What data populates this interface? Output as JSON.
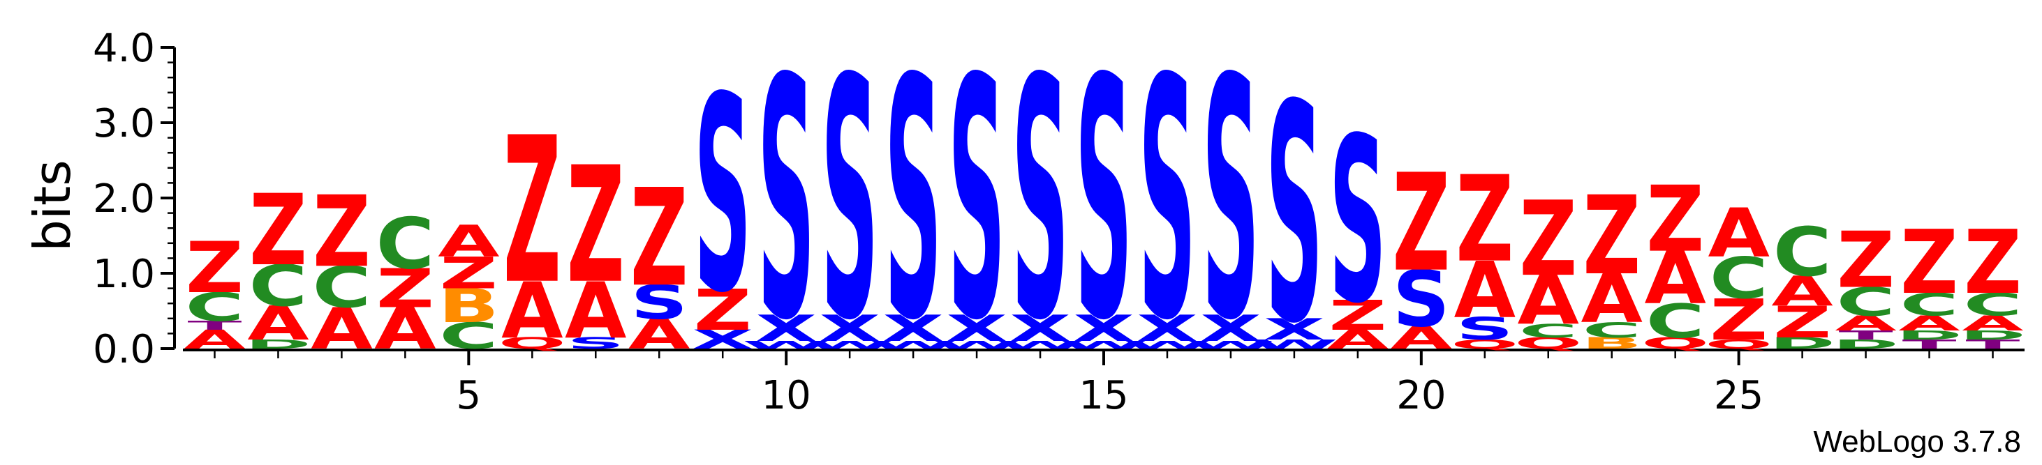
{
  "chart_data": {
    "type": "sequence-logo",
    "title": "",
    "xlabel": "",
    "ylabel": "bits",
    "ylim": [
      0,
      4.0
    ],
    "xlim": [
      1,
      29
    ],
    "y_ticks": [
      0.0,
      1.0,
      2.0,
      3.0,
      4.0
    ],
    "y_tick_labels": [
      "0.0",
      "1.0",
      "2.0",
      "3.0",
      "4.0"
    ],
    "x_ticks": [
      5,
      10,
      15,
      20,
      25
    ],
    "x_tick_labels": [
      "5",
      "10",
      "15",
      "20",
      "25"
    ],
    "grid": false,
    "legend": "none",
    "colors": {
      "Z": "#ff0000",
      "A": "#ff0000",
      "C": "#228b22",
      "S": "#0000ff",
      "X": "#0000ff",
      "W": "#0000ff",
      "B": "#ff8c00",
      "D": "#228b22",
      "Q": "#ff0000",
      "T": "#800080"
    },
    "positions": [
      {
        "pos": 1,
        "stack": [
          [
            "A",
            0.25
          ],
          [
            "T",
            0.12
          ],
          [
            "C",
            0.38
          ],
          [
            "Z",
            0.68
          ]
        ]
      },
      {
        "pos": 2,
        "stack": [
          [
            "D",
            0.12
          ],
          [
            "A",
            0.45
          ],
          [
            "C",
            0.55
          ],
          [
            "Z",
            0.95
          ]
        ]
      },
      {
        "pos": 3,
        "stack": [
          [
            "A",
            0.55
          ],
          [
            "C",
            0.55
          ],
          [
            "Z",
            0.95
          ]
        ]
      },
      {
        "pos": 4,
        "stack": [
          [
            "A",
            0.55
          ],
          [
            "Z",
            0.52
          ],
          [
            "C",
            0.68
          ]
        ]
      },
      {
        "pos": 5,
        "stack": [
          [
            "C",
            0.35
          ],
          [
            "B",
            0.45
          ],
          [
            "Z",
            0.42
          ],
          [
            "A",
            0.42
          ]
        ]
      },
      {
        "pos": 6,
        "stack": [
          [
            "Q",
            0.15
          ],
          [
            "A",
            0.75
          ],
          [
            "Z",
            1.95
          ]
        ]
      },
      {
        "pos": 7,
        "stack": [
          [
            "S",
            0.15
          ],
          [
            "A",
            0.75
          ],
          [
            "Z",
            1.55
          ]
        ]
      },
      {
        "pos": 8,
        "stack": [
          [
            "A",
            0.4
          ],
          [
            "S",
            0.45
          ],
          [
            "Z",
            1.3
          ]
        ]
      },
      {
        "pos": 9,
        "stack": [
          [
            "X",
            0.25
          ],
          [
            "Z",
            0.55
          ],
          [
            "S",
            2.6
          ]
        ]
      },
      {
        "pos": 10,
        "stack": [
          [
            "W",
            0.1
          ],
          [
            "X",
            0.35
          ],
          [
            "S",
            3.2
          ]
        ]
      },
      {
        "pos": 11,
        "stack": [
          [
            "W",
            0.1
          ],
          [
            "X",
            0.35
          ],
          [
            "S",
            3.2
          ]
        ]
      },
      {
        "pos": 12,
        "stack": [
          [
            "W",
            0.1
          ],
          [
            "X",
            0.35
          ],
          [
            "S",
            3.2
          ]
        ]
      },
      {
        "pos": 13,
        "stack": [
          [
            "W",
            0.1
          ],
          [
            "X",
            0.35
          ],
          [
            "S",
            3.2
          ]
        ]
      },
      {
        "pos": 14,
        "stack": [
          [
            "W",
            0.1
          ],
          [
            "X",
            0.35
          ],
          [
            "S",
            3.2
          ]
        ]
      },
      {
        "pos": 15,
        "stack": [
          [
            "W",
            0.1
          ],
          [
            "X",
            0.35
          ],
          [
            "S",
            3.2
          ]
        ]
      },
      {
        "pos": 16,
        "stack": [
          [
            "W",
            0.1
          ],
          [
            "X",
            0.35
          ],
          [
            "S",
            3.2
          ]
        ]
      },
      {
        "pos": 17,
        "stack": [
          [
            "W",
            0.1
          ],
          [
            "X",
            0.35
          ],
          [
            "S",
            3.2
          ]
        ]
      },
      {
        "pos": 18,
        "stack": [
          [
            "W",
            0.12
          ],
          [
            "X",
            0.28
          ],
          [
            "S",
            2.9
          ]
        ]
      },
      {
        "pos": 19,
        "stack": [
          [
            "A",
            0.25
          ],
          [
            "Z",
            0.4
          ],
          [
            "S",
            2.2
          ]
        ]
      },
      {
        "pos": 20,
        "stack": [
          [
            "A",
            0.3
          ],
          [
            "S",
            0.75
          ],
          [
            "Z",
            1.3
          ]
        ]
      },
      {
        "pos": 21,
        "stack": [
          [
            "Q",
            0.12
          ],
          [
            "S",
            0.3
          ],
          [
            "A",
            0.75
          ],
          [
            "Z",
            1.15
          ]
        ]
      },
      {
        "pos": 22,
        "stack": [
          [
            "Q",
            0.15
          ],
          [
            "C",
            0.18
          ],
          [
            "A",
            0.65
          ],
          [
            "Z",
            1.0
          ]
        ]
      },
      {
        "pos": 23,
        "stack": [
          [
            "B",
            0.15
          ],
          [
            "C",
            0.2
          ],
          [
            "A",
            0.65
          ],
          [
            "Z",
            1.05
          ]
        ]
      },
      {
        "pos": 24,
        "stack": [
          [
            "Q",
            0.15
          ],
          [
            "C",
            0.45
          ],
          [
            "A",
            0.7
          ],
          [
            "Z",
            0.88
          ]
        ]
      },
      {
        "pos": 25,
        "stack": [
          [
            "Q",
            0.12
          ],
          [
            "Z",
            0.55
          ],
          [
            "C",
            0.55
          ],
          [
            "A",
            0.65
          ]
        ]
      },
      {
        "pos": 26,
        "stack": [
          [
            "D",
            0.15
          ],
          [
            "Z",
            0.42
          ],
          [
            "A",
            0.4
          ],
          [
            "C",
            0.65
          ]
        ]
      },
      {
        "pos": 27,
        "stack": [
          [
            "D",
            0.12
          ],
          [
            "T",
            0.12
          ],
          [
            "A",
            0.2
          ],
          [
            "C",
            0.38
          ],
          [
            "Z",
            0.75
          ]
        ]
      },
      {
        "pos": 28,
        "stack": [
          [
            "T",
            0.12
          ],
          [
            "D",
            0.12
          ],
          [
            "A",
            0.2
          ],
          [
            "C",
            0.3
          ],
          [
            "Z",
            0.85
          ]
        ]
      },
      {
        "pos": 29,
        "stack": [
          [
            "T",
            0.12
          ],
          [
            "D",
            0.12
          ],
          [
            "A",
            0.2
          ],
          [
            "C",
            0.3
          ],
          [
            "Z",
            0.85
          ]
        ]
      }
    ]
  },
  "footer": {
    "credit": "WebLogo 3.7.8"
  }
}
